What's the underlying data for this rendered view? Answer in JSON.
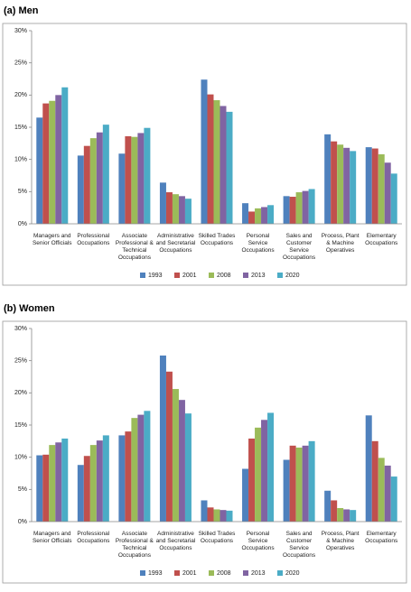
{
  "chart_data": [
    {
      "type": "bar",
      "title": "(a) Men",
      "categories": [
        "Managers and Senior Officials",
        "Professional Occupations",
        "Associate Professional & Technical Occupations",
        "Administrative and Secretarial Occupations",
        "Skilled Trades Occupations",
        "Personal Service Occupations",
        "Sales and Customer Service Occupations",
        "Process, Plant & Machine Operatives",
        "Elementary Occupations"
      ],
      "series": [
        {
          "name": "1993",
          "color": "#4f81bd",
          "values": [
            16.5,
            10.6,
            10.9,
            6.4,
            22.4,
            3.2,
            4.3,
            13.9,
            11.9
          ]
        },
        {
          "name": "2001",
          "color": "#c0504d",
          "values": [
            18.7,
            12.1,
            13.6,
            4.9,
            20.1,
            1.9,
            4.2,
            12.8,
            11.7
          ]
        },
        {
          "name": "2008",
          "color": "#9bbb59",
          "values": [
            19.1,
            13.3,
            13.5,
            4.6,
            19.2,
            2.4,
            4.9,
            12.3,
            10.8
          ]
        },
        {
          "name": "2013",
          "color": "#8064a2",
          "values": [
            20.0,
            14.2,
            14.1,
            4.3,
            18.3,
            2.6,
            5.1,
            11.8,
            9.5
          ]
        },
        {
          "name": "2020",
          "color": "#4bacc6",
          "values": [
            21.2,
            15.4,
            14.9,
            3.9,
            17.4,
            2.9,
            5.4,
            11.3,
            7.8
          ]
        }
      ],
      "ylim": [
        0,
        30
      ],
      "yticks": [
        {
          "value": 0,
          "label": "0%"
        },
        {
          "value": 5,
          "label": "5%"
        },
        {
          "value": 10,
          "label": "10%"
        },
        {
          "value": 15,
          "label": "15%"
        },
        {
          "value": 20,
          "label": "20%"
        },
        {
          "value": 25,
          "label": "25%"
        },
        {
          "value": 30,
          "label": "30%"
        }
      ],
      "grid": false,
      "legend": "bottom"
    },
    {
      "type": "bar",
      "title": "(b) Women",
      "categories": [
        "Managers and Senior Officials",
        "Professional Occupations",
        "Associate Professional & Technical Occupations",
        "Administrative and Secretarial Occupations",
        "Skilled Trades Occupations",
        "Personal Service Occupations",
        "Sales and Customer Service Occupations",
        "Process, Plant & Machine Operatives",
        "Elementary Occupations"
      ],
      "series": [
        {
          "name": "1993",
          "color": "#4f81bd",
          "values": [
            10.3,
            8.8,
            13.4,
            25.8,
            3.3,
            8.2,
            9.6,
            4.8,
            16.5
          ]
        },
        {
          "name": "2001",
          "color": "#c0504d",
          "values": [
            10.4,
            10.2,
            14.0,
            23.3,
            2.2,
            12.9,
            11.8,
            3.3,
            12.5
          ]
        },
        {
          "name": "2008",
          "color": "#9bbb59",
          "values": [
            11.9,
            11.9,
            16.1,
            20.6,
            1.9,
            14.6,
            11.5,
            2.1,
            9.9
          ]
        },
        {
          "name": "2013",
          "color": "#8064a2",
          "values": [
            12.3,
            12.6,
            16.6,
            18.9,
            1.8,
            15.8,
            11.8,
            1.9,
            8.7
          ]
        },
        {
          "name": "2020",
          "color": "#4bacc6",
          "values": [
            12.9,
            13.4,
            17.2,
            16.8,
            1.7,
            16.9,
            12.5,
            1.8,
            7.0
          ]
        }
      ],
      "ylim": [
        0,
        30
      ],
      "yticks": [
        {
          "value": 0,
          "label": "0%"
        },
        {
          "value": 5,
          "label": "5%"
        },
        {
          "value": 10,
          "label": "10%"
        },
        {
          "value": 15,
          "label": "15%"
        },
        {
          "value": 20,
          "label": "20%"
        },
        {
          "value": 25,
          "label": "25%"
        },
        {
          "value": 30,
          "label": "30%"
        }
      ],
      "grid": false,
      "legend": "bottom"
    }
  ]
}
